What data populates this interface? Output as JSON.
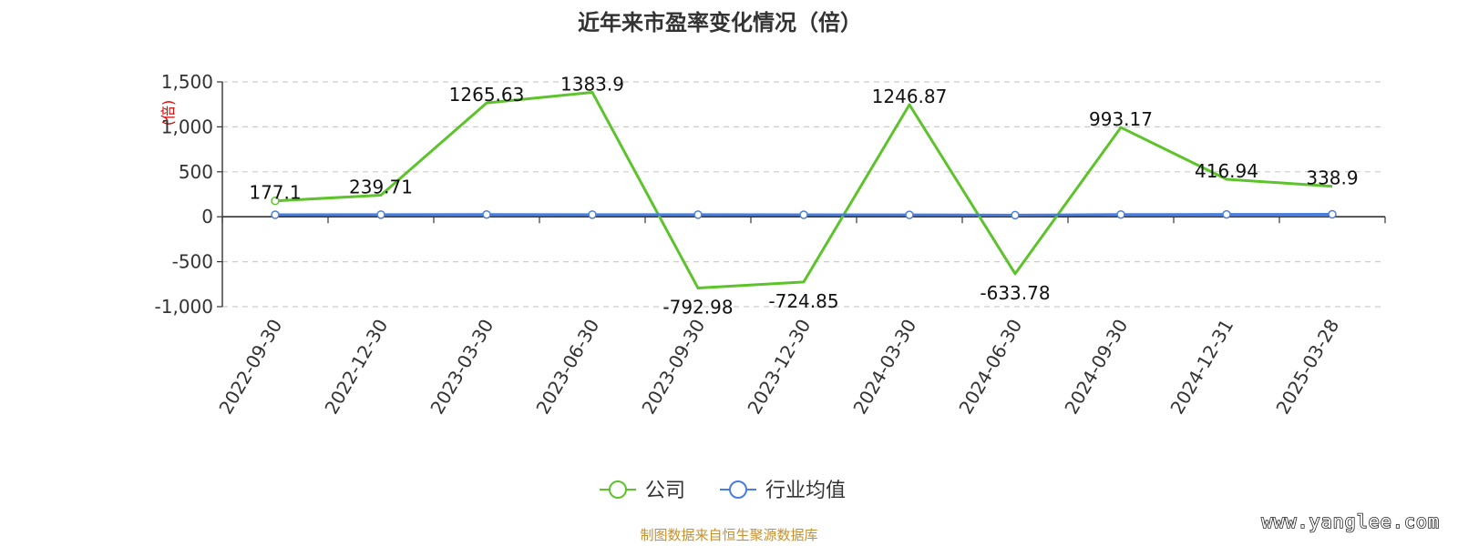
{
  "chart_data": {
    "type": "line",
    "title": "近年来市盈率变化情况（倍）",
    "ylabel": "(倍)",
    "categories": [
      "2022-09-30",
      "2022-12-30",
      "2023-03-30",
      "2023-06-30",
      "2023-09-30",
      "2023-12-30",
      "2024-03-30",
      "2024-06-30",
      "2024-09-30",
      "2024-12-31",
      "2025-03-28"
    ],
    "ylim": [
      -1000,
      1500
    ],
    "yticks": [
      1500,
      1000,
      500,
      0,
      -500,
      -1000
    ],
    "ytick_labels": [
      "1,500",
      "1,000",
      "500",
      "0",
      "-500",
      "-1,000"
    ],
    "grid": true,
    "legend_position": "bottom-center",
    "series": [
      {
        "name": "公司",
        "color": "#5cc42a",
        "values": [
          177.1,
          239.71,
          1265.63,
          1383.9,
          -792.98,
          -724.85,
          1246.87,
          -633.78,
          993.17,
          416.94,
          338.9
        ],
        "labels": [
          "177.1",
          "239.71",
          "1265.63",
          "1383.9",
          "-792.98",
          "-724.85",
          "1246.87",
          "-633.78",
          "993.17",
          "416.94",
          "338.9"
        ]
      },
      {
        "name": "行业均值",
        "color": "#4a7de0",
        "values": [
          22,
          24,
          25,
          24,
          23,
          22,
          21,
          18,
          25,
          26,
          27
        ]
      }
    ]
  },
  "source_text": "制图数据来自恒生聚源数据库",
  "watermark": "www.yanglee.com"
}
